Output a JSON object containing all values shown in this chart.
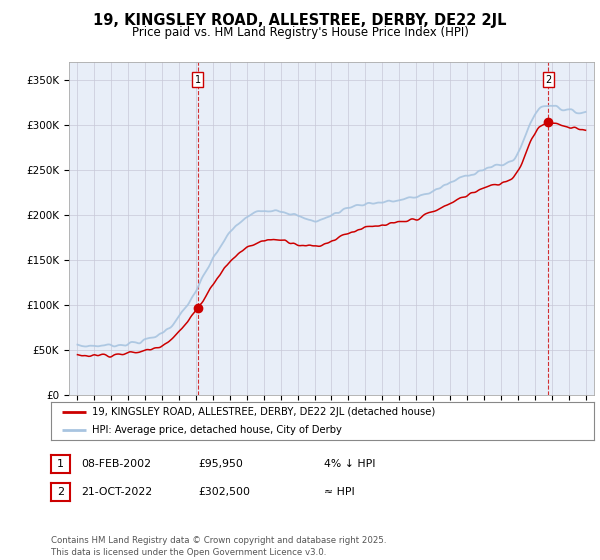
{
  "title": "19, KINGSLEY ROAD, ALLESTREE, DERBY, DE22 2JL",
  "subtitle": "Price paid vs. HM Land Registry's House Price Index (HPI)",
  "ylabel_ticks": [
    "£0",
    "£50K",
    "£100K",
    "£150K",
    "£200K",
    "£250K",
    "£300K",
    "£350K"
  ],
  "ytick_values": [
    0,
    50000,
    100000,
    150000,
    200000,
    250000,
    300000,
    350000
  ],
  "ylim": [
    0,
    370000
  ],
  "xlim_start": 1994.5,
  "xlim_end": 2025.5,
  "hpi_color": "#a8c4e0",
  "price_color": "#cc0000",
  "point1_x": 2002.1,
  "point1_y": 95950,
  "point2_x": 2022.8,
  "point2_y": 302500,
  "legend_label1": "19, KINGSLEY ROAD, ALLESTREE, DERBY, DE22 2JL (detached house)",
  "legend_label2": "HPI: Average price, detached house, City of Derby",
  "annotation1_label": "1",
  "annotation2_label": "2",
  "table_row1": [
    "1",
    "08-FEB-2002",
    "£95,950",
    "4% ↓ HPI"
  ],
  "table_row2": [
    "2",
    "21-OCT-2022",
    "£302,500",
    "≈ HPI"
  ],
  "footer": "Contains HM Land Registry data © Crown copyright and database right 2025.\nThis data is licensed under the Open Government Licence v3.0.",
  "bg_color": "#ffffff",
  "grid_color": "#c8c8d8",
  "plot_bg_color": "#e8eef8",
  "vline_color": "#cc0000"
}
